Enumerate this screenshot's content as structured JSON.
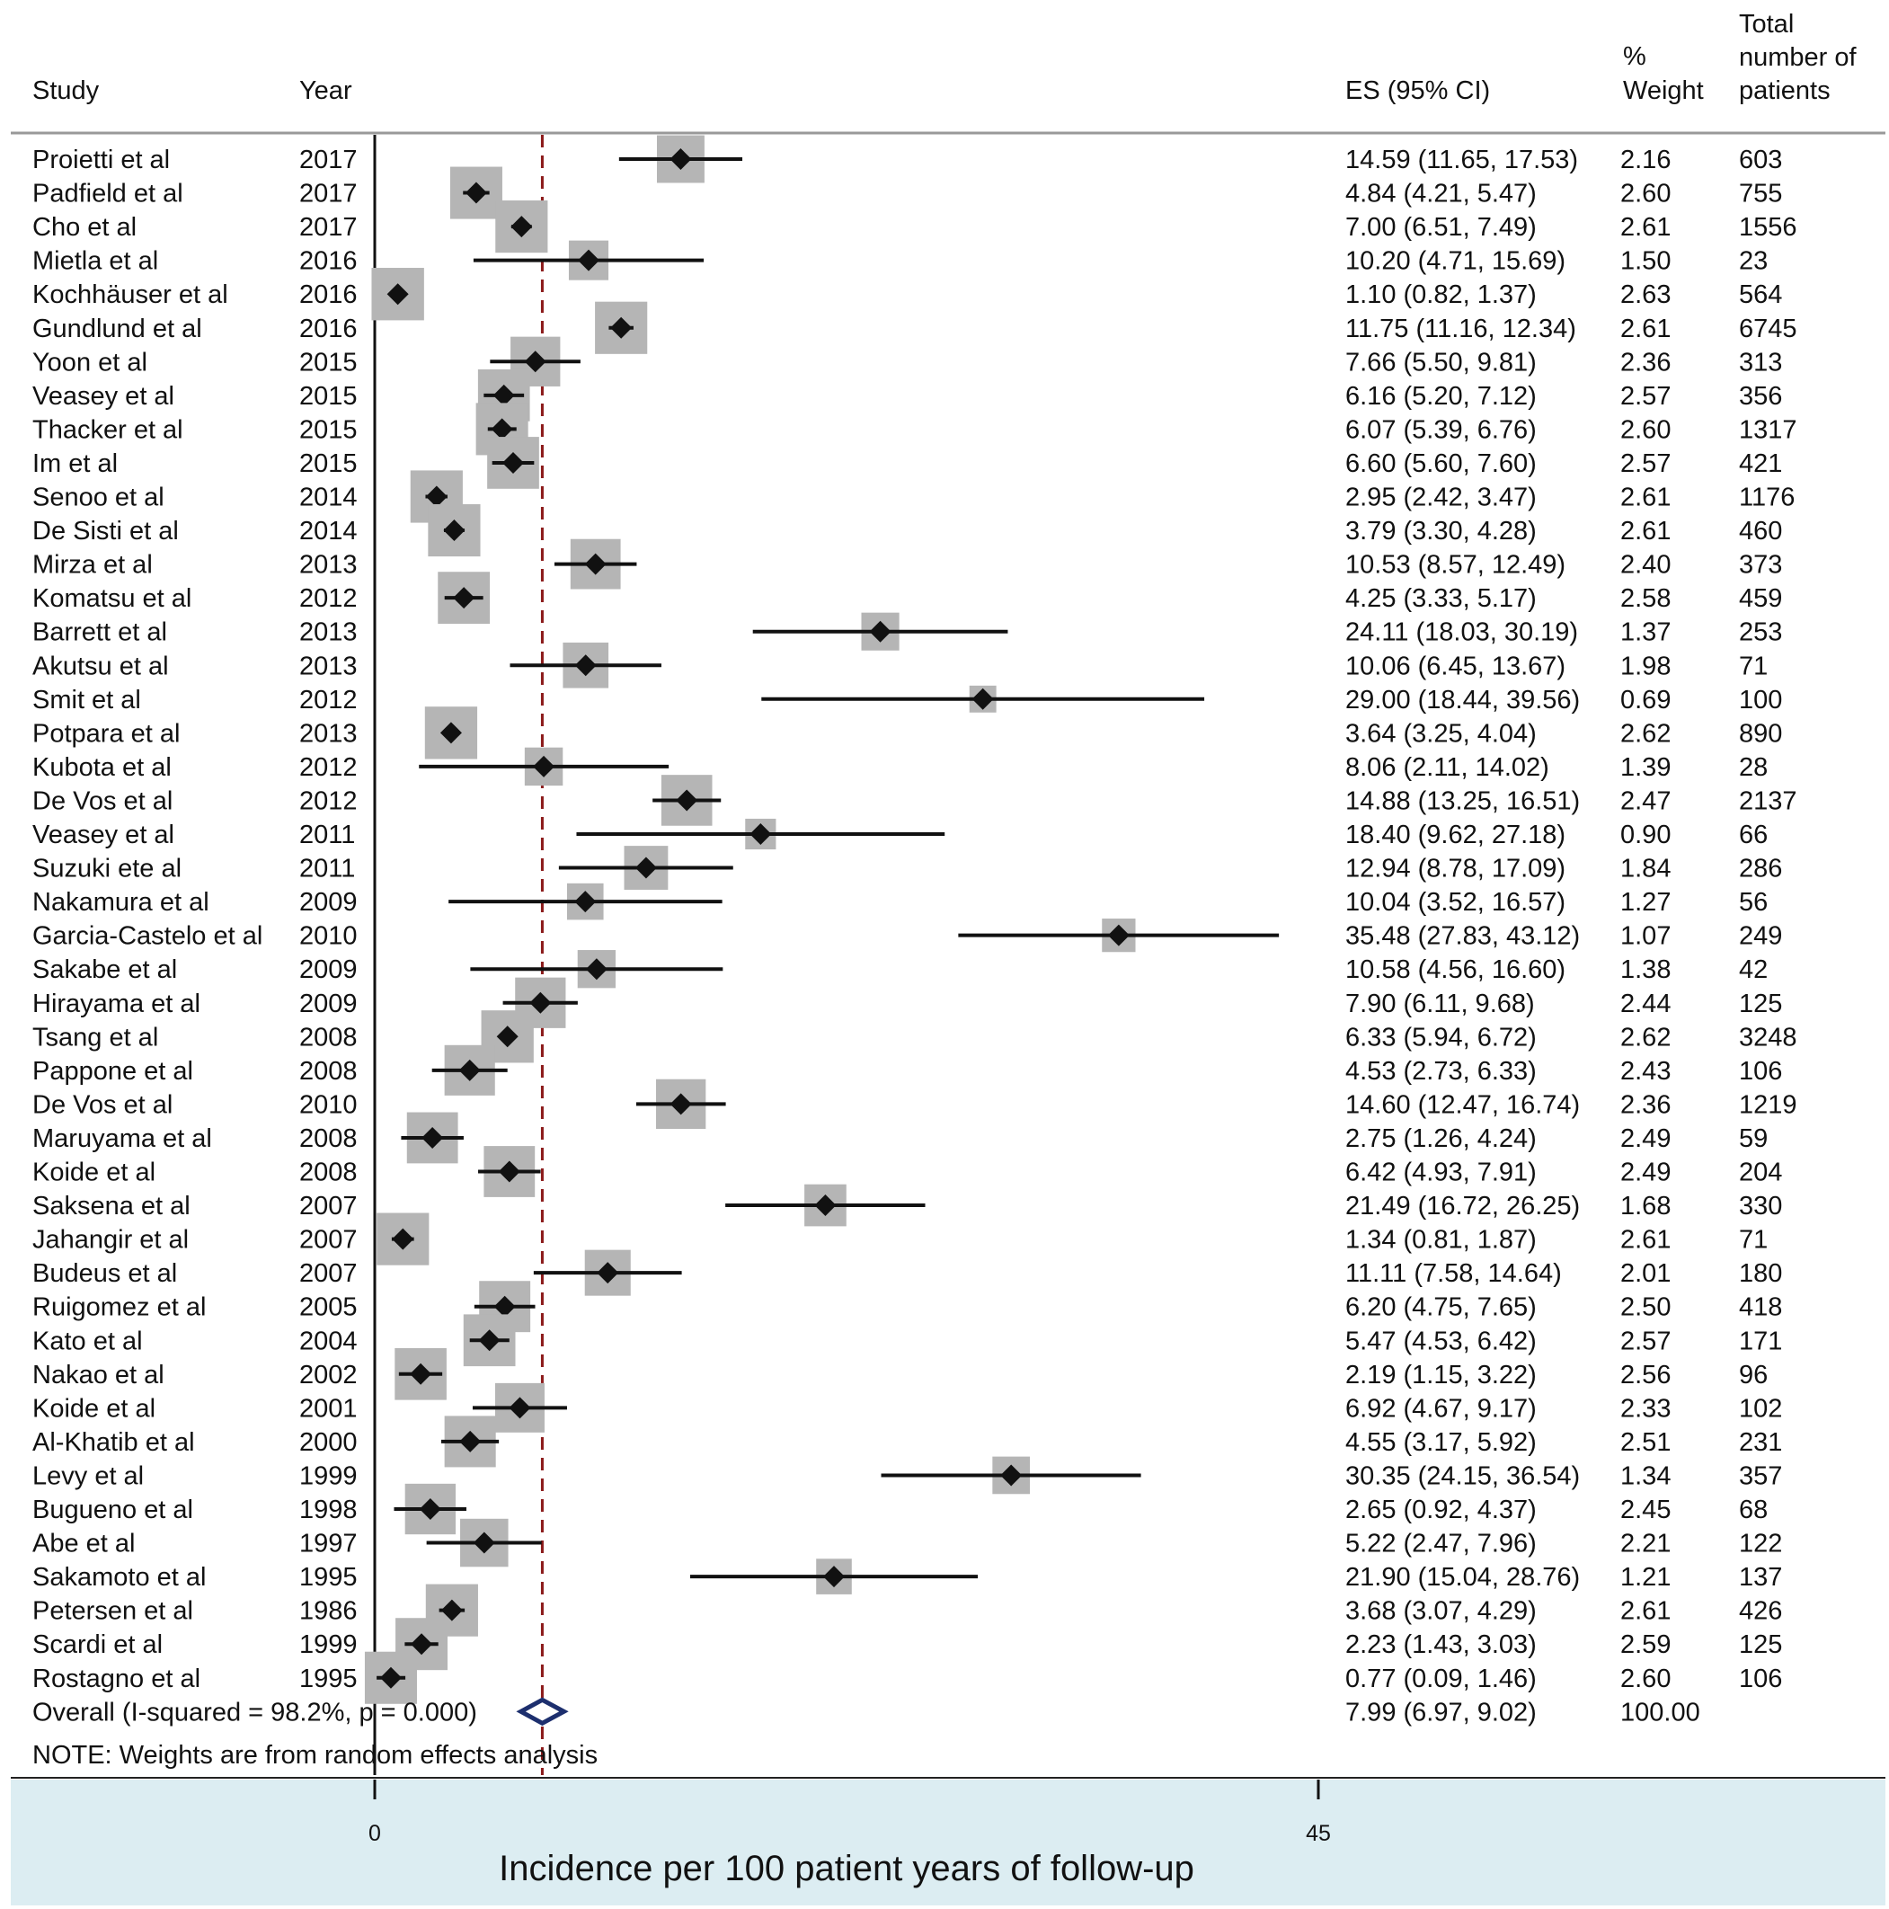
{
  "chart_data": {
    "type": "forest",
    "headers": {
      "study": "Study",
      "year": "Year",
      "es": "ES (95% CI)",
      "weight": [
        "%",
        "Weight"
      ],
      "patients": [
        "Total",
        "number of",
        "patients"
      ]
    },
    "rows": [
      {
        "study": "Proietti et al",
        "year": "2017",
        "es": 14.59,
        "lo": 11.65,
        "hi": 17.53,
        "es_text": "14.59 (11.65, 17.53)",
        "weight": "2.16",
        "patients": "603"
      },
      {
        "study": "Padfield et al",
        "year": "2017",
        "es": 4.84,
        "lo": 4.21,
        "hi": 5.47,
        "es_text": "4.84 (4.21, 5.47)",
        "weight": "2.60",
        "patients": "755"
      },
      {
        "study": "Cho et al",
        "year": "2017",
        "es": 7.0,
        "lo": 6.51,
        "hi": 7.49,
        "es_text": "7.00 (6.51, 7.49)",
        "weight": "2.61",
        "patients": "1556"
      },
      {
        "study": "Mietla et al",
        "year": "2016",
        "es": 10.2,
        "lo": 4.71,
        "hi": 15.69,
        "es_text": "10.20 (4.71, 15.69)",
        "weight": "1.50",
        "patients": "23"
      },
      {
        "study": "Kochhäuser et al",
        "year": "2016",
        "es": 1.1,
        "lo": 0.82,
        "hi": 1.37,
        "es_text": "1.10 (0.82, 1.37)",
        "weight": "2.63",
        "patients": "564"
      },
      {
        "study": "Gundlund et al",
        "year": "2016",
        "es": 11.75,
        "lo": 11.16,
        "hi": 12.34,
        "es_text": "11.75 (11.16, 12.34)",
        "weight": "2.61",
        "patients": "6745"
      },
      {
        "study": "Yoon et al",
        "year": "2015",
        "es": 7.66,
        "lo": 5.5,
        "hi": 9.81,
        "es_text": "7.66 (5.50, 9.81)",
        "weight": "2.36",
        "patients": "313"
      },
      {
        "study": "Veasey et al",
        "year": "2015",
        "es": 6.16,
        "lo": 5.2,
        "hi": 7.12,
        "es_text": "6.16 (5.20, 7.12)",
        "weight": "2.57",
        "patients": "356"
      },
      {
        "study": "Thacker et al",
        "year": "2015",
        "es": 6.07,
        "lo": 5.39,
        "hi": 6.76,
        "es_text": "6.07 (5.39, 6.76)",
        "weight": "2.60",
        "patients": "1317"
      },
      {
        "study": "Im et al",
        "year": "2015",
        "es": 6.6,
        "lo": 5.6,
        "hi": 7.6,
        "es_text": "6.60 (5.60, 7.60)",
        "weight": "2.57",
        "patients": "421"
      },
      {
        "study": "Senoo et al",
        "year": "2014",
        "es": 2.95,
        "lo": 2.42,
        "hi": 3.47,
        "es_text": "2.95 (2.42, 3.47)",
        "weight": "2.61",
        "patients": "1176"
      },
      {
        "study": "De Sisti et al",
        "year": "2014",
        "es": 3.79,
        "lo": 3.3,
        "hi": 4.28,
        "es_text": "3.79 (3.30, 4.28)",
        "weight": "2.61",
        "patients": "460"
      },
      {
        "study": "Mirza et al",
        "year": "2013",
        "es": 10.53,
        "lo": 8.57,
        "hi": 12.49,
        "es_text": "10.53 (8.57, 12.49)",
        "weight": "2.40",
        "patients": "373"
      },
      {
        "study": "Komatsu et al",
        "year": "2012",
        "es": 4.25,
        "lo": 3.33,
        "hi": 5.17,
        "es_text": "4.25 (3.33, 5.17)",
        "weight": "2.58",
        "patients": "459"
      },
      {
        "study": "Barrett et al",
        "year": "2013",
        "es": 24.11,
        "lo": 18.03,
        "hi": 30.19,
        "es_text": "24.11 (18.03, 30.19)",
        "weight": "1.37",
        "patients": "253"
      },
      {
        "study": "Akutsu et al",
        "year": "2013",
        "es": 10.06,
        "lo": 6.45,
        "hi": 13.67,
        "es_text": "10.06 (6.45, 13.67)",
        "weight": "1.98",
        "patients": "71"
      },
      {
        "study": "Smit et al",
        "year": "2012",
        "es": 29.0,
        "lo": 18.44,
        "hi": 39.56,
        "es_text": "29.00 (18.44, 39.56)",
        "weight": "0.69",
        "patients": "100"
      },
      {
        "study": "Potpara et al",
        "year": "2013",
        "es": 3.64,
        "lo": 3.25,
        "hi": 4.04,
        "es_text": "3.64 (3.25, 4.04)",
        "weight": "2.62",
        "patients": "890"
      },
      {
        "study": "Kubota et al",
        "year": "2012",
        "es": 8.06,
        "lo": 2.11,
        "hi": 14.02,
        "es_text": "8.06 (2.11, 14.02)",
        "weight": "1.39",
        "patients": "28"
      },
      {
        "study": "De Vos et al",
        "year": "2012",
        "es": 14.88,
        "lo": 13.25,
        "hi": 16.51,
        "es_text": "14.88 (13.25, 16.51)",
        "weight": "2.47",
        "patients": "2137"
      },
      {
        "study": "Veasey et al",
        "year": "2011",
        "es": 18.4,
        "lo": 9.62,
        "hi": 27.18,
        "es_text": "18.40 (9.62, 27.18)",
        "weight": "0.90",
        "patients": "66"
      },
      {
        "study": "Suzuki ete al",
        "year": "2011",
        "es": 12.94,
        "lo": 8.78,
        "hi": 17.09,
        "es_text": "12.94 (8.78, 17.09)",
        "weight": "1.84",
        "patients": "286"
      },
      {
        "study": "Nakamura et al",
        "year": "2009",
        "es": 10.04,
        "lo": 3.52,
        "hi": 16.57,
        "es_text": "10.04 (3.52, 16.57)",
        "weight": "1.27",
        "patients": "56"
      },
      {
        "study": "Garcia-Castelo et al",
        "year": "2010",
        "es": 35.48,
        "lo": 27.83,
        "hi": 43.12,
        "es_text": "35.48 (27.83, 43.12)",
        "weight": "1.07",
        "patients": "249"
      },
      {
        "study": "Sakabe et al",
        "year": "2009",
        "es": 10.58,
        "lo": 4.56,
        "hi": 16.6,
        "es_text": "10.58 (4.56, 16.60)",
        "weight": "1.38",
        "patients": "42"
      },
      {
        "study": "Hirayama et al",
        "year": "2009",
        "es": 7.9,
        "lo": 6.11,
        "hi": 9.68,
        "es_text": "7.90 (6.11, 9.68)",
        "weight": "2.44",
        "patients": "125"
      },
      {
        "study": "Tsang et al",
        "year": "2008",
        "es": 6.33,
        "lo": 5.94,
        "hi": 6.72,
        "es_text": "6.33 (5.94, 6.72)",
        "weight": "2.62",
        "patients": "3248"
      },
      {
        "study": "Pappone et al",
        "year": "2008",
        "es": 4.53,
        "lo": 2.73,
        "hi": 6.33,
        "es_text": "4.53 (2.73, 6.33)",
        "weight": "2.43",
        "patients": "106"
      },
      {
        "study": "De Vos et al",
        "year": "2010",
        "es": 14.6,
        "lo": 12.47,
        "hi": 16.74,
        "es_text": "14.60 (12.47, 16.74)",
        "weight": "2.36",
        "patients": "1219"
      },
      {
        "study": "Maruyama et al",
        "year": "2008",
        "es": 2.75,
        "lo": 1.26,
        "hi": 4.24,
        "es_text": "2.75 (1.26, 4.24)",
        "weight": "2.49",
        "patients": "59"
      },
      {
        "study": "Koide et al",
        "year": "2008",
        "es": 6.42,
        "lo": 4.93,
        "hi": 7.91,
        "es_text": "6.42 (4.93, 7.91)",
        "weight": "2.49",
        "patients": "204"
      },
      {
        "study": "Saksena et al",
        "year": "2007",
        "es": 21.49,
        "lo": 16.72,
        "hi": 26.25,
        "es_text": "21.49 (16.72, 26.25)",
        "weight": "1.68",
        "patients": "330"
      },
      {
        "study": "Jahangir et al",
        "year": "2007",
        "es": 1.34,
        "lo": 0.81,
        "hi": 1.87,
        "es_text": "1.34 (0.81, 1.87)",
        "weight": "2.61",
        "patients": "71"
      },
      {
        "study": "Budeus et al",
        "year": "2007",
        "es": 11.11,
        "lo": 7.58,
        "hi": 14.64,
        "es_text": "11.11 (7.58, 14.64)",
        "weight": "2.01",
        "patients": "180"
      },
      {
        "study": "Ruigomez et al",
        "year": "2005",
        "es": 6.2,
        "lo": 4.75,
        "hi": 7.65,
        "es_text": "6.20 (4.75, 7.65)",
        "weight": "2.50",
        "patients": "418"
      },
      {
        "study": "Kato et al",
        "year": "2004",
        "es": 5.47,
        "lo": 4.53,
        "hi": 6.42,
        "es_text": "5.47 (4.53, 6.42)",
        "weight": "2.57",
        "patients": "171"
      },
      {
        "study": "Nakao et al",
        "year": "2002",
        "es": 2.19,
        "lo": 1.15,
        "hi": 3.22,
        "es_text": "2.19 (1.15, 3.22)",
        "weight": "2.56",
        "patients": "96"
      },
      {
        "study": "Koide et al",
        "year": "2001",
        "es": 6.92,
        "lo": 4.67,
        "hi": 9.17,
        "es_text": "6.92 (4.67, 9.17)",
        "weight": "2.33",
        "patients": "102"
      },
      {
        "study": "Al-Khatib et al",
        "year": "2000",
        "es": 4.55,
        "lo": 3.17,
        "hi": 5.92,
        "es_text": "4.55 (3.17, 5.92)",
        "weight": "2.51",
        "patients": "231"
      },
      {
        "study": "Levy et al",
        "year": "1999",
        "es": 30.35,
        "lo": 24.15,
        "hi": 36.54,
        "es_text": "30.35 (24.15, 36.54)",
        "weight": "1.34",
        "patients": "357"
      },
      {
        "study": "Bugueno et al",
        "year": "1998",
        "es": 2.65,
        "lo": 0.92,
        "hi": 4.37,
        "es_text": "2.65 (0.92, 4.37)",
        "weight": "2.45",
        "patients": "68"
      },
      {
        "study": "Abe et al",
        "year": "1997",
        "es": 5.22,
        "lo": 2.47,
        "hi": 7.96,
        "es_text": "5.22 (2.47, 7.96)",
        "weight": "2.21",
        "patients": "122"
      },
      {
        "study": "Sakamoto et al",
        "year": "1995",
        "es": 21.9,
        "lo": 15.04,
        "hi": 28.76,
        "es_text": "21.90 (15.04, 28.76)",
        "weight": "1.21",
        "patients": "137"
      },
      {
        "study": "Petersen et al",
        "year": "1986",
        "es": 3.68,
        "lo": 3.07,
        "hi": 4.29,
        "es_text": "3.68 (3.07, 4.29)",
        "weight": "2.61",
        "patients": "426"
      },
      {
        "study": "Scardi et al",
        "year": "1999",
        "es": 2.23,
        "lo": 1.43,
        "hi": 3.03,
        "es_text": "2.23 (1.43, 3.03)",
        "weight": "2.59",
        "patients": "125"
      },
      {
        "study": "Rostagno et al",
        "year": "1995",
        "es": 0.77,
        "lo": 0.09,
        "hi": 1.46,
        "es_text": "0.77 (0.09, 1.46)",
        "weight": "2.60",
        "patients": "106"
      }
    ],
    "overall": {
      "label": "Overall  (I-squared = 98.2%, p = 0.000)",
      "es": 7.99,
      "lo": 6.97,
      "hi": 9.02,
      "es_text": "7.99 (6.97, 9.02)",
      "weight": "100.00"
    },
    "note": "NOTE: Weights are from random effects analysis",
    "xaxis": {
      "min": 0,
      "max": 45,
      "ticks": [
        "0",
        "45"
      ]
    },
    "xlabel": "Incidence per 100 patient years of follow-up",
    "reference_line": 0,
    "summary_line": 7.99,
    "colors": {
      "box": "#b5b5b5",
      "marker": "#111111",
      "ci": "#111111",
      "summary_line": "#8b1a1a",
      "diamond": "#1d2f6e",
      "axis_band": "#dcedf2",
      "rule": "#999999"
    }
  }
}
